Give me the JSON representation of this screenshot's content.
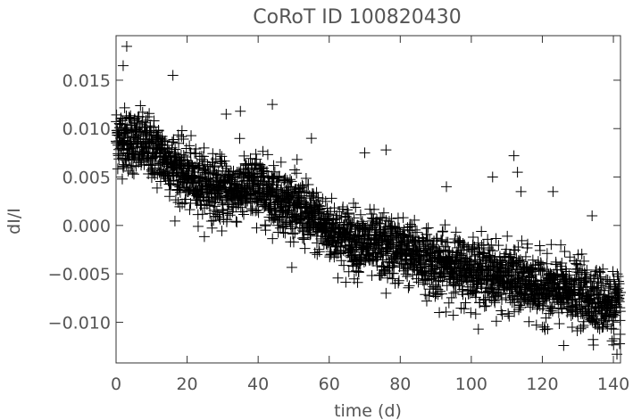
{
  "chart_data": {
    "type": "scatter",
    "title": "CoRoT ID 100820430",
    "xlabel": "time (d)",
    "ylabel": "dI/I",
    "xlim": [
      0,
      142
    ],
    "ylim": [
      -0.0142,
      0.0196
    ],
    "x_ticks": [
      0,
      20,
      40,
      60,
      80,
      100,
      120,
      140
    ],
    "x_tick_labels": [
      "0",
      "20",
      "40",
      "60",
      "80",
      "100",
      "120",
      "140"
    ],
    "y_ticks": [
      -0.01,
      -0.005,
      0.0,
      0.005,
      0.01,
      0.015
    ],
    "y_tick_labels": [
      "−0.010",
      "−0.005",
      "0.000",
      "0.005",
      "0.010",
      "0.015"
    ],
    "marker": "plus",
    "grid": false,
    "trend_points": [
      {
        "x": 0,
        "y": 0.0092
      },
      {
        "x": 10,
        "y": 0.008
      },
      {
        "x": 20,
        "y": 0.005
      },
      {
        "x": 30,
        "y": 0.0035
      },
      {
        "x": 40,
        "y": 0.004
      },
      {
        "x": 50,
        "y": 0.002
      },
      {
        "x": 60,
        "y": -0.0005
      },
      {
        "x": 70,
        "y": -0.002
      },
      {
        "x": 80,
        "y": -0.0025
      },
      {
        "x": 90,
        "y": -0.004
      },
      {
        "x": 100,
        "y": -0.0045
      },
      {
        "x": 110,
        "y": -0.0055
      },
      {
        "x": 120,
        "y": -0.0065
      },
      {
        "x": 130,
        "y": -0.007
      },
      {
        "x": 142,
        "y": -0.0085
      }
    ],
    "scatter_sigma": 0.0016,
    "outliers": [
      {
        "x": 3,
        "y": 0.0185
      },
      {
        "x": 2,
        "y": 0.0165
      },
      {
        "x": 16,
        "y": 0.0155
      },
      {
        "x": 31,
        "y": 0.0115
      },
      {
        "x": 35,
        "y": 0.0118
      },
      {
        "x": 44,
        "y": 0.0125
      },
      {
        "x": 55,
        "y": 0.009
      },
      {
        "x": 70,
        "y": 0.0075
      },
      {
        "x": 76,
        "y": 0.0078
      },
      {
        "x": 76,
        "y": -0.007
      },
      {
        "x": 91,
        "y": -0.009
      },
      {
        "x": 93,
        "y": 0.004
      },
      {
        "x": 98,
        "y": -0.0086
      },
      {
        "x": 106,
        "y": 0.005
      },
      {
        "x": 112,
        "y": 0.0072
      },
      {
        "x": 113,
        "y": 0.0055
      },
      {
        "x": 114,
        "y": 0.0035
      },
      {
        "x": 123,
        "y": 0.0035
      },
      {
        "x": 126,
        "y": -0.0124
      },
      {
        "x": 134,
        "y": 0.001
      },
      {
        "x": 141,
        "y": -0.0133
      }
    ]
  }
}
